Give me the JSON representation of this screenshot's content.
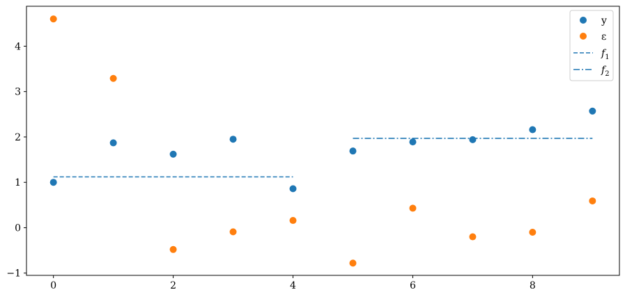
{
  "chart_data": {
    "type": "scatter",
    "x": [
      0,
      1,
      2,
      3,
      4,
      5,
      6,
      7,
      8,
      9
    ],
    "xlim": [
      -0.45,
      9.45
    ],
    "ylim": [
      -1.05,
      4.88
    ],
    "xticks": [
      "0",
      "2",
      "4",
      "6",
      "8"
    ],
    "yticks": [
      "−1",
      "0",
      "1",
      "2",
      "3",
      "4"
    ],
    "grid": false,
    "legend_position": "top-right",
    "series": [
      {
        "name": "y",
        "kind": "scatter",
        "color": "#1f77b4",
        "values": [
          1.0,
          1.87,
          1.62,
          1.95,
          0.86,
          1.69,
          1.89,
          1.94,
          2.16,
          2.57
        ]
      },
      {
        "name": "ε",
        "kind": "scatter",
        "color": "#ff7f0e",
        "values": [
          4.6,
          3.29,
          -0.48,
          -0.09,
          0.16,
          -0.78,
          0.43,
          -0.2,
          -0.1,
          0.59
        ]
      },
      {
        "name": "f1",
        "kind": "line",
        "dash": "dashed",
        "color": "#1f77b4",
        "x": [
          0,
          4
        ],
        "values": [
          1.12,
          1.12
        ]
      },
      {
        "name": "f2",
        "kind": "line",
        "dash": "dashdot",
        "color": "#1f77b4",
        "x": [
          5,
          9
        ],
        "values": [
          1.97,
          1.97
        ]
      }
    ],
    "legend": {
      "entries": [
        {
          "label": "y",
          "sub": ""
        },
        {
          "label": "ε",
          "sub": ""
        },
        {
          "label": "f",
          "sub": "1"
        },
        {
          "label": "f",
          "sub": "2"
        }
      ]
    }
  }
}
